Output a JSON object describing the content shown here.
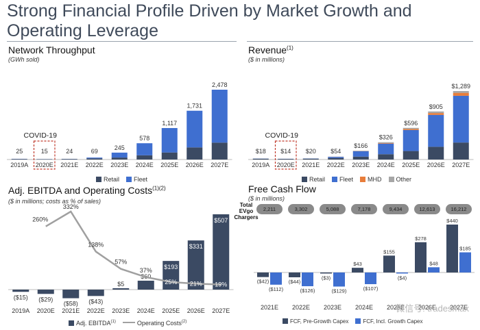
{
  "title": "Strong Financial Profile Driven by Market Growth and Operating Leverage",
  "colors": {
    "navy": "#3b4a63",
    "blue": "#3f6fd0",
    "orange": "#e87d3a",
    "gray": "#a6a6a6",
    "line": "#a0a0a0",
    "covid_box": "#c0392b"
  },
  "network": {
    "title": "Network Throughput",
    "subtitle": "(GWh sold)",
    "covid_label": "COVID-19"
  },
  "revenue": {
    "title": "Revenue",
    "title_note": "(1)",
    "subtitle": "($ in millions)",
    "covid_label": "COVID-19"
  },
  "ebitda": {
    "title": "Adj. EBITDA and Operating Costs",
    "title_note": "(1)(2)",
    "subtitle": "($ in millions; costs as % of sales)",
    "legend_bar": "Adj. EBITDA",
    "legend_bar_note": "(1)",
    "legend_line": "Operating Costs",
    "legend_line_note": "(2)"
  },
  "fcf": {
    "title": "Free Cash Flow",
    "subtitle": "($ in millions)",
    "chargers_label_l1": "Total",
    "chargers_label_l2": "EVgo",
    "chargers_label_l3": "Chargers",
    "chargers": [
      "2,211",
      "3,302",
      "5,088",
      "7,178",
      "9,434",
      "12,613",
      "16,212"
    ],
    "legend_a": "FCF, Pre-Growth Capex",
    "legend_b": "FCF, Incl. Growth Capex"
  },
  "watermark": "微信号: tradesmax",
  "chart_data": [
    {
      "type": "bar",
      "stacked": true,
      "title": "Network Throughput",
      "subtitle": "(GWh sold)",
      "categories": [
        "2019A",
        "2020E",
        "2021E",
        "2022E",
        "2023E",
        "2024E",
        "2025E",
        "2026E",
        "2027E"
      ],
      "totals": [
        25,
        15,
        24,
        69,
        245,
        578,
        1117,
        1731,
        2478
      ],
      "total_labels": [
        "25",
        "15",
        "24",
        "69",
        "245",
        "578",
        "1,117",
        "1,731",
        "2,478"
      ],
      "series": [
        {
          "name": "Retail",
          "values": [
            20,
            12,
            20,
            40,
            70,
            150,
            250,
            430,
            600
          ]
        },
        {
          "name": "Fleet",
          "values": [
            5,
            3,
            4,
            29,
            175,
            428,
            867,
            1301,
            1878
          ]
        }
      ],
      "ylim": [
        0,
        2478
      ],
      "annotation": "COVID-19",
      "highlight_category": "2020E"
    },
    {
      "type": "bar",
      "stacked": true,
      "title": "Revenue",
      "subtitle": "($ in millions)",
      "categories": [
        "2019A",
        "2020E",
        "2021E",
        "2022E",
        "2023E",
        "2024E",
        "2025E",
        "2026E",
        "2027E"
      ],
      "totals": [
        18,
        14,
        20,
        54,
        166,
        326,
        596,
        905,
        1289
      ],
      "total_labels": [
        "$18",
        "$14",
        "$20",
        "$54",
        "$166",
        "$326",
        "$596",
        "$905",
        "$1,289"
      ],
      "series": [
        {
          "name": "Retail",
          "values": [
            16,
            12,
            17,
            30,
            55,
            100,
            160,
            240,
            320
          ]
        },
        {
          "name": "Fleet",
          "values": [
            2,
            2,
            3,
            20,
            100,
            200,
            395,
            600,
            880
          ]
        },
        {
          "name": "MHD",
          "values": [
            0,
            0,
            0,
            1,
            3,
            10,
            20,
            35,
            55
          ]
        },
        {
          "name": "Other",
          "values": [
            0,
            0,
            0,
            3,
            8,
            16,
            21,
            30,
            34
          ]
        }
      ],
      "ylim": [
        0,
        1289
      ],
      "annotation": "COVID-19",
      "highlight_category": "2020E"
    },
    {
      "type": "bar",
      "title": "Adj. EBITDA and Operating Costs",
      "subtitle": "($ in millions; costs as % of sales)",
      "categories": [
        "2019A",
        "2020E",
        "2021E",
        "2022E",
        "2023E",
        "2024E",
        "2025E",
        "2026E",
        "2027E"
      ],
      "series": [
        {
          "name": "Adj. EBITDA",
          "values": [
            -15,
            -29,
            -58,
            -43,
            5,
            60,
            193,
            331,
            507
          ],
          "labels": [
            "($15)",
            "($29)",
            "($58)",
            "($43)",
            "$5",
            "$60",
            "$193",
            "$331",
            "$507"
          ]
        },
        {
          "name": "Operating Costs",
          "type": "line",
          "values": [
            null,
            260,
            332,
            138,
            57,
            37,
            25,
            21,
            19
          ],
          "labels": [
            "",
            "260%",
            "332%",
            "138%",
            "57%",
            "37%",
            "25%",
            "21%",
            "19%"
          ]
        }
      ]
    },
    {
      "type": "bar",
      "title": "Free Cash Flow",
      "subtitle": "($ in millions)",
      "categories": [
        "2021E",
        "2022E",
        "2023E",
        "2024E",
        "2025E",
        "2026E",
        "2027E"
      ],
      "series": [
        {
          "name": "FCF, Pre-Growth Capex",
          "values": [
            -42,
            -44,
            -3,
            43,
            155,
            278,
            440
          ],
          "labels": [
            "($42)",
            "($44)",
            "($3)",
            "$43",
            "$155",
            "$278",
            "$440"
          ]
        },
        {
          "name": "FCF, Incl. Growth Capex",
          "values": [
            -112,
            -126,
            -129,
            -107,
            -4,
            48,
            185
          ],
          "labels": [
            "($112)",
            "($126)",
            "($129)",
            "($107)",
            "($4)",
            "$48",
            "$185"
          ]
        }
      ]
    }
  ]
}
